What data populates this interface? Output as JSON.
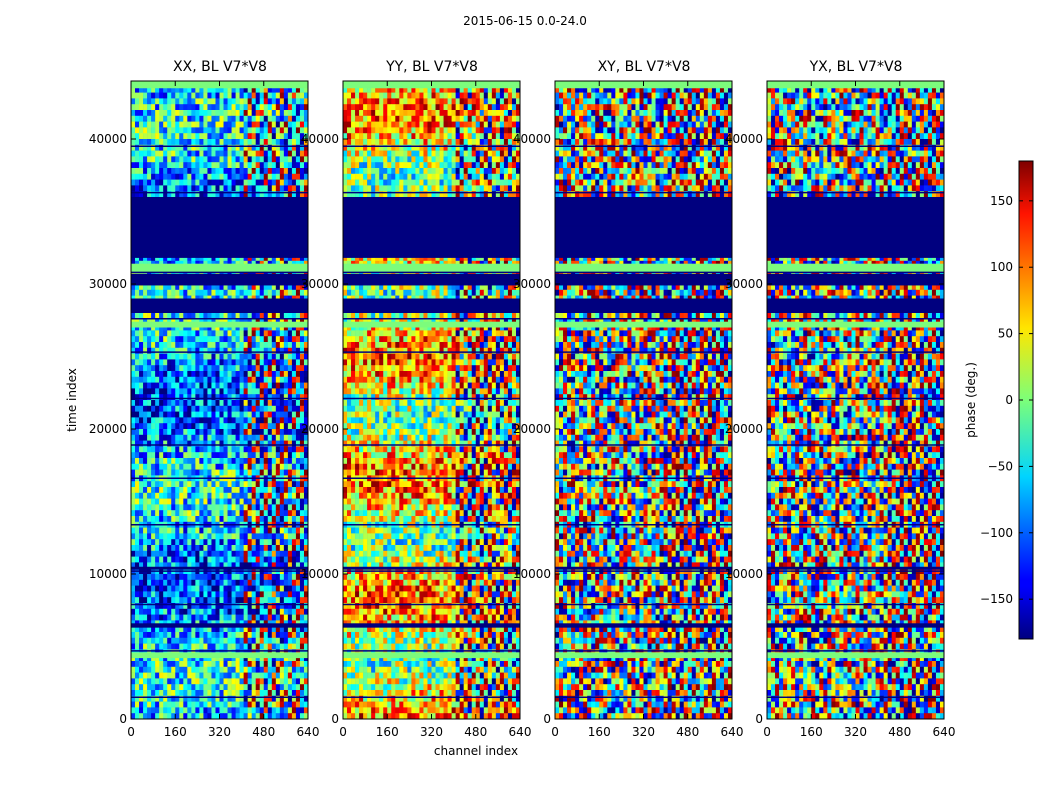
{
  "figure": {
    "suptitle": "2015-06-15 0.0-24.0",
    "ylabel": "time index",
    "xlabel": "channel index",
    "colorbar_label": "phase (deg.)"
  },
  "chart_data": {
    "type": "heatmap",
    "colormap": "jet",
    "panels": [
      {
        "title": "XX, BL V7*V8",
        "polarization": "XX"
      },
      {
        "title": "YY, BL V7*V8",
        "polarization": "YY"
      },
      {
        "title": "XY, BL V7*V8",
        "polarization": "XY"
      },
      {
        "title": "YX, BL V7*V8",
        "polarization": "YX"
      }
    ],
    "xlabel": "channel index",
    "ylabel": "time index",
    "xlim": [
      0,
      640
    ],
    "ylim": [
      0,
      44000
    ],
    "x_ticks": [
      0,
      160,
      320,
      480,
      640
    ],
    "y_ticks": [
      0,
      10000,
      20000,
      30000,
      40000
    ],
    "colorbar": {
      "label": "phase (deg.)",
      "range": [
        -180,
        180
      ],
      "ticks": [
        -150,
        -100,
        -50,
        0,
        50,
        100,
        150
      ]
    }
  },
  "colors": {
    "flagged": "#00007f",
    "gap_band": "#7cfc7c"
  }
}
